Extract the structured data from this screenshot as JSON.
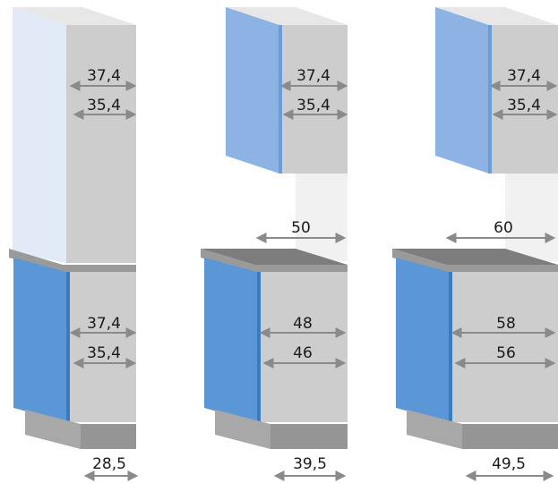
{
  "colors": {
    "door_front": "#5b97d6",
    "door_edge": "#3d79bd",
    "door_upper": "#8cb3e3",
    "door_pale": "#e2e9f7",
    "cabinet_side": "#cdcdcd",
    "cabinet_top": "#e7e7e7",
    "countertop_top": "#7d7d7d",
    "countertop_edge": "#9a9a9a",
    "plinth": "#a8a8a8",
    "backsplash": "#f1f1f1",
    "arrow": "#8a8a8a"
  },
  "cabinets": [
    {
      "name": "tall-cabinet",
      "upper_dimensions": [
        "37,4",
        "35,4"
      ],
      "lower_dimensions": [
        "37,4",
        "35,4"
      ],
      "depth": "28,5"
    },
    {
      "name": "cabinet-50",
      "upper_dimensions": [
        "37,4",
        "35,4"
      ],
      "counter_width": "50",
      "lower_dimensions": [
        "48",
        "46"
      ],
      "depth": "39,5"
    },
    {
      "name": "cabinet-60",
      "upper_dimensions": [
        "37,4",
        "35,4"
      ],
      "counter_width": "60",
      "lower_dimensions": [
        "58",
        "56"
      ],
      "depth": "49,5"
    }
  ]
}
